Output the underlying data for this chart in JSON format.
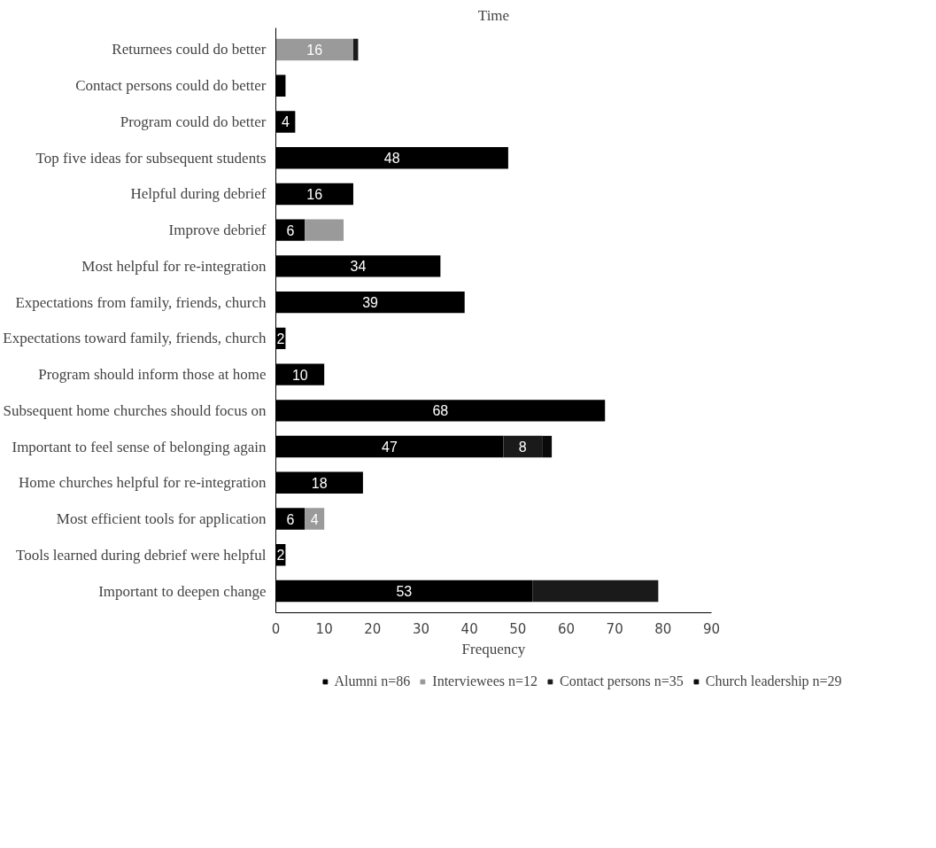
{
  "chart_data": {
    "type": "bar",
    "orientation": "horizontal",
    "stacked": true,
    "title": "Time",
    "xlabel": "Frequency",
    "categories": [
      "Returnees could do better",
      "Contact persons could do better",
      "Program could do better",
      "Top five ideas for subsequent students",
      "Helpful during debrief",
      "Improve debrief",
      "Most helpful for re-integration",
      "Expectations from family, friends, church",
      "Expectations toward family, friends, church",
      "Program should inform those at home",
      "Subsequent home churches should focus on",
      "Important to feel sense of belonging again",
      "Home churches helpful for re-integration",
      "Most efficient tools for application",
      "Tools learned during debrief were helpful",
      "Important to deepen change"
    ],
    "series": [
      {
        "name": "Alumni n=86",
        "color": "#000000",
        "values": [
          0,
          2,
          4,
          48,
          16,
          6,
          34,
          39,
          2,
          10,
          68,
          47,
          18,
          6,
          2,
          53
        ],
        "value_labels": [
          null,
          null,
          "4",
          "48",
          "16",
          "6",
          "34",
          "39",
          "2",
          "10",
          "68",
          "47",
          "18",
          "6",
          "2",
          "53"
        ]
      },
      {
        "name": "Interviewees n=12",
        "color": "#9a9a9a",
        "values": [
          16,
          0,
          0,
          0,
          0,
          8,
          0,
          0,
          0,
          0,
          0,
          0,
          0,
          4,
          0,
          0
        ],
        "value_labels": [
          "16",
          null,
          null,
          null,
          null,
          null,
          null,
          null,
          null,
          null,
          null,
          null,
          null,
          "4",
          null,
          null
        ]
      },
      {
        "name": "Contact persons n=35",
        "color": "#1a1a1a",
        "values": [
          1,
          0,
          0,
          0,
          0,
          0,
          0,
          0,
          0,
          0,
          0,
          8,
          0,
          0,
          0,
          26
        ],
        "value_labels": [
          null,
          null,
          null,
          null,
          null,
          null,
          null,
          null,
          null,
          null,
          null,
          "8",
          null,
          null,
          null,
          null
        ]
      },
      {
        "name": "Church leadership n=29",
        "color": "#0a0a0a",
        "values": [
          0,
          0,
          0,
          0,
          0,
          0,
          0,
          0,
          0,
          0,
          0,
          2,
          0,
          0,
          0,
          0
        ]
      }
    ],
    "xlim": [
      0,
      90
    ],
    "xticks": [
      0,
      10,
      20,
      30,
      40,
      50,
      60,
      70,
      80,
      90
    ],
    "grid": false,
    "legend": "bottom"
  }
}
